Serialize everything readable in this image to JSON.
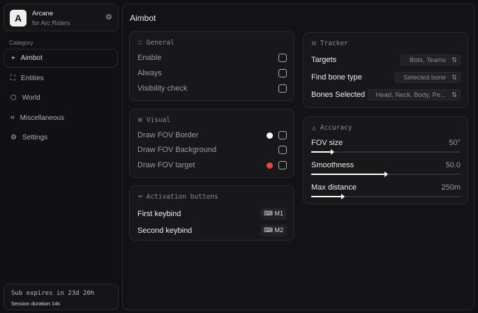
{
  "app": {
    "logo_letter": "A",
    "name": "Arcane",
    "subtitle": "for Arc Riders",
    "settings_icon": "gear-icon"
  },
  "sidebar": {
    "category_label": "Category",
    "items": [
      {
        "label": "Aimbot",
        "icon": "crosshair-icon",
        "active": true
      },
      {
        "label": "Entities",
        "icon": "scan-icon"
      },
      {
        "label": "World",
        "icon": "globe-icon"
      },
      {
        "label": "Miscellaneous",
        "icon": "grid-icon"
      },
      {
        "label": "Settings",
        "icon": "gear-icon"
      }
    ],
    "footer": {
      "sub": "Sub expires in 23d 20h",
      "session": "Session duration 14s"
    }
  },
  "main": {
    "title": "Aimbot",
    "general": {
      "title": "General",
      "items": [
        {
          "label": "Enable",
          "checked": false
        },
        {
          "label": "Always",
          "checked": false
        },
        {
          "label": "Visibility check",
          "checked": false
        }
      ]
    },
    "visual": {
      "title": "Visual",
      "items": [
        {
          "label": "Draw FOV Border",
          "color": "#ffffff",
          "checked": false
        },
        {
          "label": "Draw FOV Background",
          "checked": false
        },
        {
          "label": "Draw FOV target",
          "color": "#e84545",
          "checked": false
        }
      ]
    },
    "activation": {
      "title": "Activation buttons",
      "items": [
        {
          "label": "First keybind",
          "key": "M1"
        },
        {
          "label": "Second keybind",
          "key": "M2"
        }
      ]
    },
    "tracker": {
      "title": "Tracker",
      "items": [
        {
          "label": "Targets",
          "value": "Bots, Teams"
        },
        {
          "label": "Find bone type",
          "value": "Selected bone"
        },
        {
          "label": "Bones Selected",
          "value": "Head, Neck, Body, Pe..."
        }
      ]
    },
    "accuracy": {
      "title": "Accuracy",
      "sliders": [
        {
          "label": "FOV size",
          "value": "50°",
          "fraction": 0.14
        },
        {
          "label": "Smoothness",
          "value": "50.0",
          "fraction": 0.5
        },
        {
          "label": "Max distance",
          "value": "250m",
          "fraction": 0.21
        }
      ]
    }
  }
}
